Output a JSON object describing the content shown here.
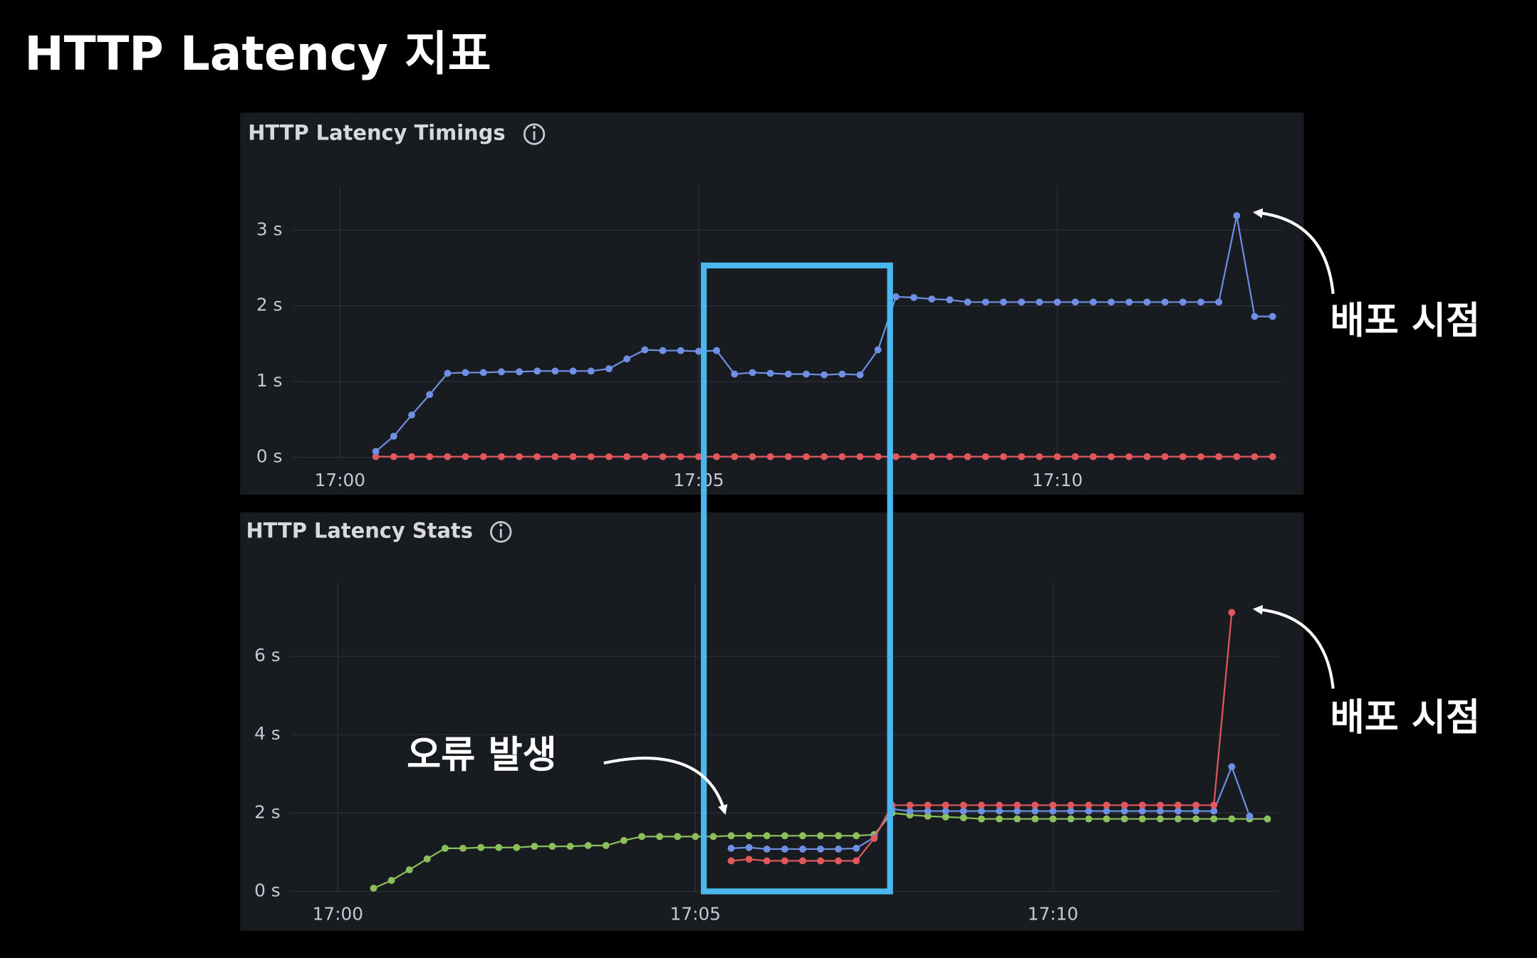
{
  "title": "HTTP Latency 지표",
  "chart_data": [
    {
      "type": "line",
      "title": "HTTP Latency Timings",
      "x": [
        "17:00:30",
        "17:00:45",
        "17:01:00",
        "17:01:15",
        "17:01:30",
        "17:01:45",
        "17:02:00",
        "17:02:15",
        "17:02:30",
        "17:02:45",
        "17:03:00",
        "17:03:15",
        "17:03:30",
        "17:03:45",
        "17:04:00",
        "17:04:15",
        "17:04:30",
        "17:04:45",
        "17:05:00",
        "17:05:15",
        "17:05:30",
        "17:05:45",
        "17:06:00",
        "17:06:15",
        "17:06:30",
        "17:06:45",
        "17:07:00",
        "17:07:15",
        "17:07:30",
        "17:07:45",
        "17:08:00",
        "17:08:15",
        "17:08:30",
        "17:08:45",
        "17:09:00",
        "17:09:15",
        "17:09:30",
        "17:09:45",
        "17:10:00",
        "17:10:15",
        "17:10:30",
        "17:10:45",
        "17:11:00",
        "17:11:15",
        "17:11:30",
        "17:11:45",
        "17:12:00",
        "17:12:15",
        "17:12:30",
        "17:12:45",
        "17:13:00"
      ],
      "xlim": [
        "16:59:20",
        "17:13:08"
      ],
      "xticks": [
        {
          "value": "17:00:00",
          "label": "17:00"
        },
        {
          "value": "17:05:00",
          "label": "17:05"
        },
        {
          "value": "17:10:00",
          "label": "17:10"
        }
      ],
      "ylim": [
        0,
        3.58
      ],
      "yticks": [
        {
          "value": 0,
          "label": "0 s"
        },
        {
          "value": 1,
          "label": "1 s"
        },
        {
          "value": 2,
          "label": "2 s"
        },
        {
          "value": 3,
          "label": "3 s"
        }
      ],
      "grid": true,
      "series": [
        {
          "color": "#e0575c",
          "values": [
            0.01,
            0.01,
            0.01,
            0.01,
            0.01,
            0.01,
            0.01,
            0.01,
            0.01,
            0.01,
            0.01,
            0.01,
            0.01,
            0.01,
            0.01,
            0.01,
            0.01,
            0.01,
            0.01,
            0.01,
            0.01,
            0.01,
            0.01,
            0.01,
            0.01,
            0.01,
            0.01,
            0.01,
            0.01,
            0.01,
            0.01,
            0.01,
            0.01,
            0.01,
            0.01,
            0.01,
            0.01,
            0.01,
            0.01,
            0.01,
            0.01,
            0.01,
            0.01,
            0.01,
            0.01,
            0.01,
            0.01,
            0.01,
            0.01,
            0.01,
            0.01
          ]
        },
        {
          "color": "#6e8fe3",
          "values": [
            0.08,
            0.28,
            0.56,
            0.83,
            1.11,
            1.12,
            1.12,
            1.13,
            1.13,
            1.14,
            1.14,
            1.14,
            1.14,
            1.17,
            1.3,
            1.42,
            1.41,
            1.41,
            1.4,
            1.41,
            1.1,
            1.12,
            1.11,
            1.1,
            1.1,
            1.09,
            1.1,
            1.09,
            1.42,
            2.12,
            2.11,
            2.09,
            2.08,
            2.05,
            2.05,
            2.05,
            2.05,
            2.05,
            2.05,
            2.05,
            2.05,
            2.05,
            2.05,
            2.05,
            2.05,
            2.05,
            2.05,
            2.05,
            3.19,
            1.86,
            1.86
          ]
        }
      ],
      "annotations": [
        "배포 시점"
      ]
    },
    {
      "type": "line",
      "title": "HTTP Latency Stats",
      "x": [
        "17:00:30",
        "17:00:45",
        "17:01:00",
        "17:01:15",
        "17:01:30",
        "17:01:45",
        "17:02:00",
        "17:02:15",
        "17:02:30",
        "17:02:45",
        "17:03:00",
        "17:03:15",
        "17:03:30",
        "17:03:45",
        "17:04:00",
        "17:04:15",
        "17:04:30",
        "17:04:45",
        "17:05:00",
        "17:05:15",
        "17:05:30",
        "17:05:45",
        "17:06:00",
        "17:06:15",
        "17:06:30",
        "17:06:45",
        "17:07:00",
        "17:07:15",
        "17:07:30",
        "17:07:45",
        "17:08:00",
        "17:08:15",
        "17:08:30",
        "17:08:45",
        "17:09:00",
        "17:09:15",
        "17:09:30",
        "17:09:45",
        "17:10:00",
        "17:10:15",
        "17:10:30",
        "17:10:45",
        "17:11:00",
        "17:11:15",
        "17:11:30",
        "17:11:45",
        "17:12:00",
        "17:12:15",
        "17:12:30",
        "17:12:45",
        "17:13:00"
      ],
      "xlim": [
        "16:59:20",
        "17:13:09"
      ],
      "xticks": [
        {
          "value": "17:00:00",
          "label": "17:00"
        },
        {
          "value": "17:05:00",
          "label": "17:05"
        },
        {
          "value": "17:10:00",
          "label": "17:10"
        }
      ],
      "ylim": [
        0,
        7.875
      ],
      "yticks": [
        {
          "value": 0,
          "label": "0 s"
        },
        {
          "value": 2,
          "label": "2 s"
        },
        {
          "value": 4,
          "label": "4 s"
        },
        {
          "value": 6,
          "label": "6 s"
        }
      ],
      "grid": true,
      "series": [
        {
          "color": "#8bbf5c",
          "values": [
            0.08,
            0.28,
            0.55,
            0.83,
            1.1,
            1.1,
            1.12,
            1.12,
            1.12,
            1.15,
            1.15,
            1.15,
            1.17,
            1.17,
            1.3,
            1.4,
            1.4,
            1.4,
            1.4,
            1.4,
            1.42,
            1.42,
            1.42,
            1.42,
            1.42,
            1.42,
            1.42,
            1.42,
            1.45,
            2.0,
            1.95,
            1.92,
            1.9,
            1.88,
            1.85,
            1.85,
            1.85,
            1.85,
            1.85,
            1.85,
            1.85,
            1.85,
            1.85,
            1.85,
            1.85,
            1.85,
            1.85,
            1.85,
            1.85,
            1.85,
            1.85
          ]
        },
        {
          "color": "#6e8fe3",
          "values": [
            null,
            null,
            null,
            null,
            null,
            null,
            null,
            null,
            null,
            null,
            null,
            null,
            null,
            null,
            null,
            null,
            null,
            null,
            null,
            null,
            1.1,
            1.12,
            1.08,
            1.08,
            1.08,
            1.08,
            1.08,
            1.1,
            1.38,
            2.1,
            2.05,
            2.05,
            2.05,
            2.05,
            2.05,
            2.05,
            2.05,
            2.05,
            2.05,
            2.05,
            2.05,
            2.05,
            2.05,
            2.05,
            2.05,
            2.05,
            2.05,
            2.05,
            3.18,
            1.92,
            null
          ]
        },
        {
          "color": "#e0575c",
          "values": [
            null,
            null,
            null,
            null,
            null,
            null,
            null,
            null,
            null,
            null,
            null,
            null,
            null,
            null,
            null,
            null,
            null,
            null,
            null,
            null,
            0.78,
            0.82,
            0.78,
            0.78,
            0.78,
            0.78,
            0.78,
            0.78,
            1.35,
            2.2,
            2.2,
            2.2,
            2.2,
            2.2,
            2.2,
            2.2,
            2.2,
            2.2,
            2.2,
            2.2,
            2.2,
            2.2,
            2.2,
            2.2,
            2.2,
            2.2,
            2.2,
            2.2,
            7.12,
            null,
            null
          ]
        }
      ],
      "annotations": [
        "배포 시점",
        "오류 발생"
      ]
    }
  ]
}
